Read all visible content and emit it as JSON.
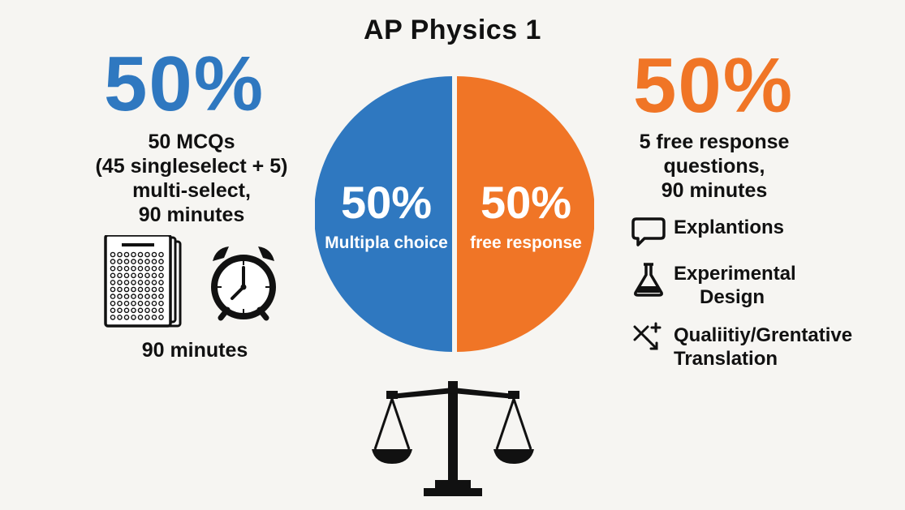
{
  "title": "AP Physics 1",
  "left_panel": {
    "percent": "50%",
    "description_lines": [
      "50 MCQs",
      "(45 singleselect + 5)",
      "multi-select,",
      "90 minutes"
    ],
    "icons": [
      "answer-sheet-icon",
      "stopwatch-icon"
    ],
    "minutes_label": "90 minutes"
  },
  "right_panel": {
    "percent": "50%",
    "description_lines": [
      "5 free response",
      "questions,",
      "90 minutes"
    ],
    "items": [
      {
        "icon": "speech-bubble-icon",
        "lines": [
          "Explantions"
        ]
      },
      {
        "icon": "flask-icon",
        "lines": [
          "Experimental",
          "Design"
        ]
      },
      {
        "icon": "sparkle-arrows-icon",
        "lines": [
          "Qualiitiy/Grentative",
          "Translation"
        ]
      }
    ]
  },
  "decorations": [
    "balance-scale-icon"
  ],
  "chart_data": {
    "type": "pie",
    "title": "AP Physics 1",
    "slices": [
      {
        "label": "Multipla choice",
        "value": 50,
        "display": "50%",
        "color": "#2f78c0"
      },
      {
        "label": "free response",
        "value": 50,
        "display": "50%",
        "color": "#f07526"
      }
    ],
    "legend": "none"
  }
}
